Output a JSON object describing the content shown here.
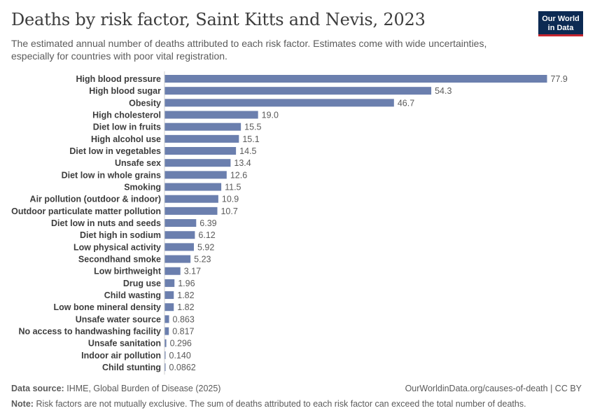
{
  "header": {
    "title": "Deaths by risk factor, Saint Kitts and Nevis, 2023",
    "subtitle": "The estimated annual number of deaths attributed to each risk factor. Estimates come with wide uncertainties, especially for countries with poor vital registration."
  },
  "logo": {
    "line1": "Our World",
    "line2": "in Data"
  },
  "footer": {
    "source_label": "Data source:",
    "source_text": "IHME, Global Burden of Disease (2025)",
    "url_text": "OurWorldinData.org/causes-of-death | CC BY",
    "note_label": "Note:",
    "note_text": "Risk factors are not mutually exclusive. The sum of deaths attributed to each risk factor can exceed the total number of deaths."
  },
  "chart_data": {
    "type": "bar",
    "orientation": "horizontal",
    "title": "Deaths by risk factor, Saint Kitts and Nevis, 2023",
    "xlabel": "",
    "ylabel": "",
    "bar_color": "#6b7fae",
    "categories": [
      "High blood pressure",
      "High blood sugar",
      "Obesity",
      "High cholesterol",
      "Diet low in fruits",
      "High alcohol use",
      "Diet low in vegetables",
      "Unsafe sex",
      "Diet low in whole grains",
      "Smoking",
      "Air pollution (outdoor & indoor)",
      "Outdoor particulate matter pollution",
      "Diet low in nuts and seeds",
      "Diet high in sodium",
      "Low physical activity",
      "Secondhand smoke",
      "Low birthweight",
      "Drug use",
      "Child wasting",
      "Low bone mineral density",
      "Unsafe water source",
      "No access to handwashing facility",
      "Unsafe sanitation",
      "Indoor air pollution",
      "Child stunting"
    ],
    "values": [
      77.9,
      54.3,
      46.7,
      19.0,
      15.5,
      15.1,
      14.5,
      13.4,
      12.6,
      11.5,
      10.9,
      10.7,
      6.39,
      6.12,
      5.92,
      5.23,
      3.17,
      1.96,
      1.82,
      1.82,
      0.863,
      0.817,
      0.296,
      0.14,
      0.0862
    ],
    "value_labels": [
      "77.9",
      "54.3",
      "46.7",
      "19.0",
      "15.5",
      "15.1",
      "14.5",
      "13.4",
      "12.6",
      "11.5",
      "10.9",
      "10.7",
      "6.39",
      "6.12",
      "5.92",
      "5.23",
      "3.17",
      "1.96",
      "1.82",
      "1.82",
      "0.863",
      "0.817",
      "0.296",
      "0.140",
      "0.0862"
    ],
    "xlim": [
      0,
      77.9
    ]
  }
}
